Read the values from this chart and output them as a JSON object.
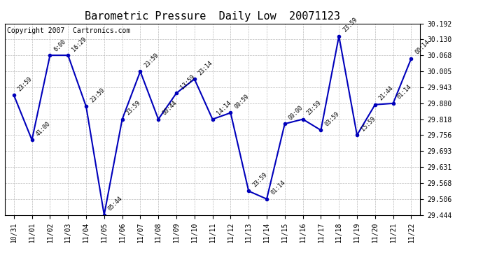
{
  "title": "Barometric Pressure  Daily Low  20071123",
  "copyright": "Copyright 2007  Cartronics.com",
  "x_labels": [
    "10/31",
    "11/01",
    "11/02",
    "11/03",
    "11/04",
    "11/05",
    "11/06",
    "11/07",
    "11/08",
    "11/09",
    "11/10",
    "11/11",
    "11/12",
    "11/13",
    "11/14",
    "11/15",
    "11/16",
    "11/17",
    "11/18",
    "11/19",
    "11/20",
    "11/21",
    "11/22"
  ],
  "y_values": [
    29.912,
    29.737,
    30.068,
    30.068,
    29.868,
    29.444,
    29.818,
    30.005,
    29.818,
    29.92,
    29.975,
    29.818,
    29.843,
    29.537,
    29.506,
    29.8,
    29.818,
    29.775,
    30.143,
    29.756,
    29.875,
    29.88,
    30.055
  ],
  "point_labels": [
    "23:59",
    "41:00",
    "6:00",
    "16:29",
    "23:59",
    "05:44",
    "23:59",
    "23:59",
    "00:44",
    "13:59",
    "23:14",
    "14:14",
    "00:59",
    "23:59",
    "01:14",
    "00:00",
    "23:59",
    "03:59",
    "23:59",
    "15:59",
    "21:44",
    "01:14",
    "00:14"
  ],
  "ylim": [
    29.444,
    30.192
  ],
  "yticks": [
    29.444,
    29.506,
    29.568,
    29.631,
    29.693,
    29.756,
    29.818,
    29.88,
    29.943,
    30.005,
    30.068,
    30.13,
    30.192
  ],
  "line_color": "#0000bb",
  "marker_color": "#0000bb",
  "bg_color": "#ffffff",
  "grid_color": "#bbbbbb",
  "title_fontsize": 11,
  "label_fontsize": 7,
  "annotation_fontsize": 6,
  "copyright_fontsize": 7
}
